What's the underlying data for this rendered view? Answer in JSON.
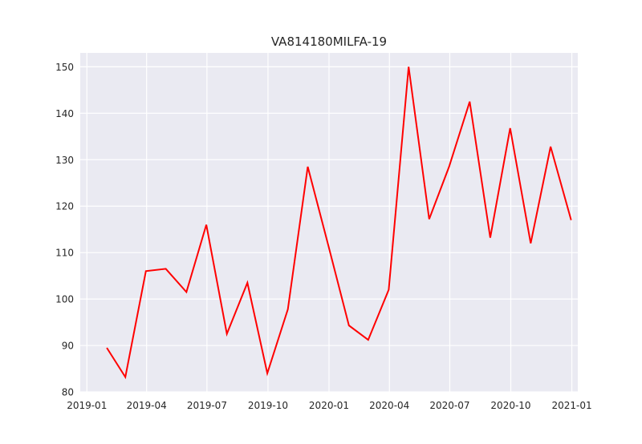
{
  "chart_data": {
    "type": "line",
    "title": "VA814180MILFA-19",
    "xlabel": "",
    "ylabel": "",
    "ylim": [
      80,
      153
    ],
    "xlim": [
      "2018-12-22",
      "2021-01-10"
    ],
    "yticks": [
      80,
      90,
      100,
      110,
      120,
      130,
      140,
      150
    ],
    "xticks": [
      "2019-01",
      "2019-04",
      "2019-07",
      "2019-10",
      "2020-01",
      "2020-04",
      "2020-07",
      "2020-10",
      "2021-01"
    ],
    "grid": true,
    "legend": "none",
    "series": [
      {
        "color": "#ff0000",
        "x": [
          "2019-01-31",
          "2019-02-28",
          "2019-03-31",
          "2019-04-30",
          "2019-05-31",
          "2019-06-30",
          "2019-07-31",
          "2019-08-31",
          "2019-09-30",
          "2019-10-31",
          "2019-11-30",
          "2019-12-31",
          "2020-01-31",
          "2020-02-29",
          "2020-03-31",
          "2020-04-30",
          "2020-05-31",
          "2020-06-30",
          "2020-07-31",
          "2020-08-31",
          "2020-09-30",
          "2020-10-31",
          "2020-11-30",
          "2020-12-31"
        ],
        "values": [
          89.5,
          83.2,
          106.0,
          106.5,
          101.5,
          116.0,
          92.5,
          103.5,
          84.0,
          97.8,
          128.5,
          111.5,
          94.3,
          91.2,
          102.0,
          150.0,
          117.2,
          128.5,
          142.5,
          113.2,
          136.8,
          112.0,
          132.8,
          117.0
        ]
      }
    ]
  },
  "colors": {
    "plot_background": "#eaeaf2",
    "grid": "#ffffff",
    "line": "#ff0000"
  }
}
